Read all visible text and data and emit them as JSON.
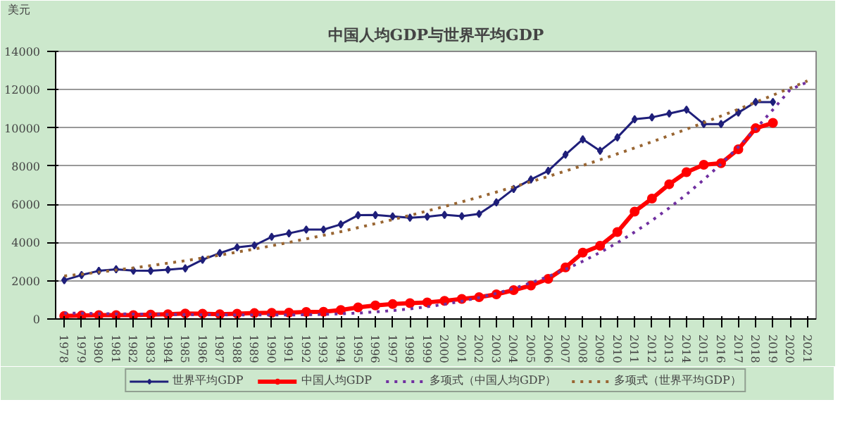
{
  "chart_data": {
    "type": "line",
    "title": "中国人均GDP与世界平均GDP",
    "ylabel": "美元",
    "categories": [
      "1978",
      "1979",
      "1980",
      "1981",
      "1982",
      "1983",
      "1984",
      "1985",
      "1986",
      "1987",
      "1988",
      "1989",
      "1990",
      "1991",
      "1992",
      "1993",
      "1994",
      "1995",
      "1996",
      "1997",
      "1998",
      "1999",
      "2000",
      "2001",
      "2002",
      "2003",
      "2004",
      "2005",
      "2006",
      "2007",
      "2008",
      "2009",
      "2010",
      "2011",
      "2012",
      "2013",
      "2014",
      "2015",
      "2016",
      "2017",
      "2018",
      "2019",
      "2020",
      "2021"
    ],
    "ylim": [
      0,
      14000
    ],
    "yticks": [
      0,
      2000,
      4000,
      6000,
      8000,
      10000,
      12000,
      14000
    ],
    "grid": "y",
    "legend": "bottom",
    "series": [
      {
        "name": "世界平均GDP",
        "color": "#1f1f7a",
        "marker": "diamond",
        "line_style": "solid",
        "values": [
          2030,
          2300,
          2520,
          2600,
          2530,
          2520,
          2580,
          2650,
          3100,
          3450,
          3750,
          3850,
          4300,
          4480,
          4680,
          4680,
          4950,
          5430,
          5440,
          5370,
          5300,
          5350,
          5450,
          5380,
          5500,
          6100,
          6800,
          7300,
          7750,
          8600,
          9400,
          8800,
          9500,
          10450,
          10550,
          10750,
          10950,
          10200,
          10200,
          10800,
          11350,
          11350,
          null,
          null
        ]
      },
      {
        "name": "中国人均GDP",
        "color": "#ff0000",
        "marker": "circle",
        "line_style": "solid",
        "values": [
          160,
          180,
          200,
          200,
          200,
          230,
          250,
          290,
          280,
          250,
          280,
          310,
          320,
          330,
          370,
          380,
          470,
          610,
          710,
          780,
          830,
          870,
          950,
          1050,
          1140,
          1290,
          1510,
          1750,
          2100,
          2700,
          3470,
          3830,
          4550,
          5620,
          6300,
          7050,
          7680,
          8070,
          8150,
          8880,
          9980,
          10260,
          null,
          null
        ]
      },
      {
        "name": "多项式（中国人均GDP）",
        "color": "#7030a0",
        "marker": "none",
        "line_style": "dotted",
        "values": [
          300,
          300,
          280,
          270,
          260,
          250,
          240,
          230,
          220,
          220,
          210,
          210,
          210,
          210,
          220,
          240,
          270,
          310,
          370,
          440,
          530,
          640,
          770,
          930,
          1120,
          1340,
          1600,
          1890,
          2220,
          2600,
          3020,
          3480,
          3990,
          4550,
          5150,
          5810,
          6520,
          7290,
          8110,
          9000,
          9940,
          10950,
          12000,
          12400
        ]
      },
      {
        "name": "多项式（世界平均GDP）",
        "color": "#996633",
        "marker": "none",
        "line_style": "dotted",
        "values": [
          2250,
          2340,
          2450,
          2560,
          2670,
          2790,
          2920,
          3050,
          3190,
          3340,
          3500,
          3660,
          3830,
          4010,
          4190,
          4380,
          4570,
          4780,
          4990,
          5200,
          5420,
          5650,
          5890,
          6130,
          6380,
          6640,
          6910,
          7180,
          7460,
          7740,
          8030,
          8330,
          8640,
          8950,
          9270,
          9600,
          9930,
          10270,
          10620,
          10970,
          11340,
          11710,
          12080,
          12460
        ]
      }
    ]
  }
}
